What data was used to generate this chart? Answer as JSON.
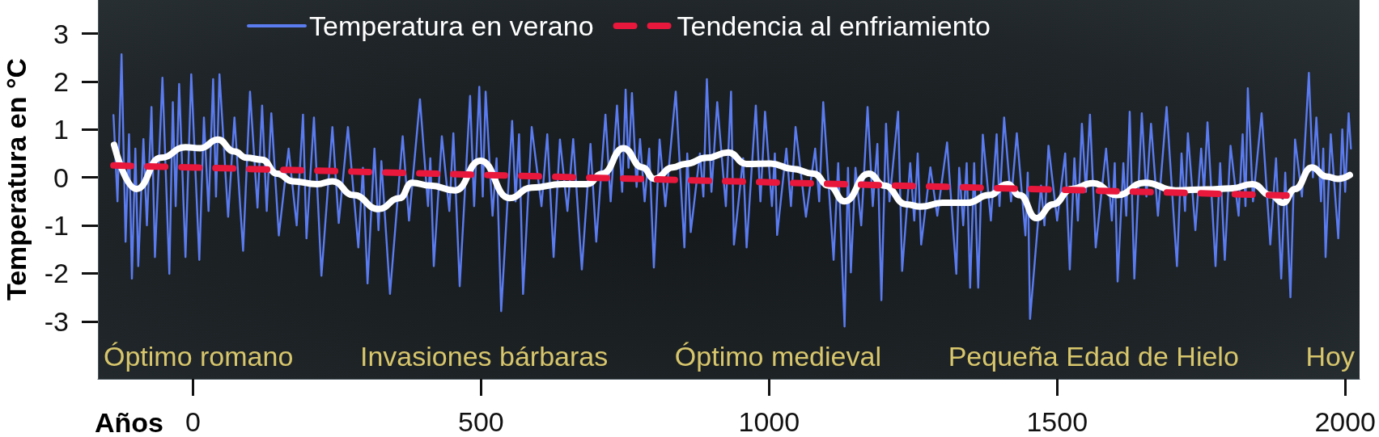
{
  "chart_data": {
    "type": "line",
    "xlabel": "Años",
    "ylabel": "Temperatura en °C",
    "annotations": [
      "Óptimo romano",
      "Invasiones bárbaras",
      "Óptimo medieval",
      "Pequeña Edad de Hielo",
      "Hoy"
    ],
    "series": [
      {
        "name": "Temperatura en verano",
        "color": "#5b7cf0",
        "x": [
          -138,
          -131,
          -124,
          -117,
          -111,
          -106,
          -100,
          -95,
          -86,
          -80,
          -72,
          -66,
          -53,
          -41,
          -35,
          -30,
          -24,
          -13,
          -3,
          11,
          19,
          27,
          35,
          40,
          46,
          61,
          72,
          87,
          99,
          112,
          120,
          128,
          136,
          149,
          166,
          180,
          191,
          197,
          210,
          223,
          242,
          253,
          269,
          287,
          295,
          303,
          315,
          322,
          327,
          342,
          364,
          375,
          394,
          408,
          412,
          418,
          432,
          445,
          452,
          463,
          481,
          488,
          497,
          503,
          508,
          520,
          527,
          535,
          554,
          560,
          566,
          573,
          588,
          605,
          615,
          626,
          637,
          650,
          660,
          675,
          690,
          700,
          716,
          725,
          736,
          745,
          751,
          756,
          762,
          770,
          776,
          784,
          792,
          800,
          810,
          820,
          838,
          853,
          858,
          864,
          880,
          886,
          892,
          900,
          910,
          925,
          934,
          939,
          955,
          961,
          977,
          985,
          993,
          1005,
          1010,
          1014,
          1030,
          1038,
          1046,
          1064,
          1080,
          1087,
          1094,
          1112,
          1120,
          1131,
          1137,
          1142,
          1150,
          1160,
          1171,
          1180,
          1188,
          1195,
          1203,
          1209,
          1224,
          1231,
          1245,
          1252,
          1258,
          1264,
          1280,
          1292,
          1309,
          1325,
          1330,
          1337,
          1343,
          1349,
          1356,
          1363,
          1371,
          1385,
          1395,
          1400,
          1408,
          1420,
          1430,
          1445,
          1449,
          1453,
          1472,
          1478,
          1485,
          1500,
          1514,
          1522,
          1530,
          1536,
          1543,
          1550,
          1557,
          1567,
          1585,
          1595,
          1600,
          1605,
          1615,
          1620,
          1626,
          1634,
          1647,
          1655,
          1663,
          1675,
          1690,
          1708,
          1716,
          1722,
          1727,
          1740,
          1750,
          1755,
          1761,
          1775,
          1783,
          1791,
          1801,
          1815,
          1822,
          1827,
          1831,
          1840,
          1855,
          1870,
          1880,
          1889,
          1896,
          1905,
          1913,
          1925,
          1937,
          1944,
          1950,
          1958,
          1962,
          1966,
          1975,
          1988,
          1995,
          2000,
          2006,
          2010
        ],
        "values": [
          1.3,
          -0.5,
          2.57,
          -1.34,
          0.9,
          -2.11,
          0.6,
          -1.85,
          0.8,
          -1.0,
          1.47,
          -1.66,
          2.08,
          -2.01,
          1.57,
          -0.6,
          1.95,
          -1.66,
          2.15,
          -1.72,
          1.25,
          -0.7,
          2.05,
          -0.4,
          2.15,
          -0.82,
          1.25,
          -1.53,
          1.79,
          -0.63,
          1.5,
          -0.7,
          1.34,
          -1.21,
          0.6,
          -1.0,
          1.31,
          -1.27,
          1.25,
          -2.05,
          1.05,
          -0.95,
          1.05,
          -1.46,
          0.2,
          -2.21,
          0.6,
          -1.1,
          0.34,
          -2.43,
          0.86,
          -0.9,
          1.63,
          -0.6,
          0.4,
          -1.85,
          0.86,
          -0.7,
          0.92,
          -2.27,
          1.7,
          -0.6,
          1.89,
          -0.4,
          1.79,
          -0.8,
          0.4,
          -2.79,
          1.18,
          -0.5,
          0.9,
          -2.43,
          1.05,
          -0.6,
          0.9,
          -1.66,
          0.79,
          -0.7,
          0.8,
          -1.92,
          0.7,
          -1.34,
          1.31,
          -0.5,
          1.5,
          -0.3,
          1.83,
          0.2,
          1.76,
          -0.2,
          0.8,
          -0.5,
          0.6,
          -1.88,
          0.79,
          -0.6,
          1.79,
          -1.46,
          0.5,
          -1.14,
          0.5,
          -0.4,
          2.05,
          -0.3,
          1.57,
          -0.6,
          1.79,
          -1.4,
          0.4,
          -1.46,
          1.5,
          -0.5,
          1.37,
          -0.6,
          0.5,
          -1.2,
          0.6,
          -0.6,
          1.05,
          -0.82,
          0.6,
          -0.5,
          1.57,
          -1.72,
          0.3,
          -3.11,
          0.2,
          -1.98,
          0.2,
          -1.0,
          1.47,
          -0.6,
          0.7,
          -2.56,
          1.12,
          -0.5,
          1.37,
          -1.95,
          0.3,
          -0.9,
          0.5,
          -1.4,
          0.21,
          -0.8,
          0.73,
          -2.01,
          0.2,
          -1.0,
          0.3,
          -2.3,
          0.3,
          -2.3,
          0.89,
          -0.9,
          0.9,
          -0.6,
          1.25,
          -0.5,
          0.92,
          -1.21,
          0.1,
          -2.95,
          -0.17,
          -1.0,
          0.66,
          -0.9,
          0.5,
          -1.92,
          0.4,
          -0.9,
          1.12,
          -0.3,
          1.31,
          -1.46,
          0.6,
          -0.9,
          0.3,
          -2.17,
          0.3,
          -0.8,
          1.37,
          -2.11,
          1.34,
          -0.4,
          1.12,
          -0.8,
          1.47,
          -1.85,
          0.5,
          -0.7,
          0.92,
          -1.1,
          0.6,
          -0.3,
          1.15,
          -1.85,
          0.3,
          -1.72,
          0.66,
          -0.8,
          0.9,
          -0.6,
          1.86,
          -0.5,
          1.34,
          -1.4,
          0.4,
          -2.11,
          0.1,
          -2.5,
          0.79,
          -0.4,
          2.18,
          0.0,
          1.25,
          -0.5,
          0.6,
          -1.66,
          0.9,
          -1.27,
          1.0,
          -0.3,
          1.34,
          0.6
        ]
      },
      {
        "color": "#ffffff",
        "x": [
          -137,
          -98,
          -56,
          -13,
          13,
          43,
          72,
          93,
          120,
          146,
          173,
          215,
          242,
          279,
          322,
          359,
          380,
          412,
          455,
          499,
          549,
          588,
          641,
          684,
          711,
          747,
          780,
          801,
          833,
          854,
          892,
          929,
          961,
          1003,
          1040,
          1077,
          1104,
          1131,
          1173,
          1200,
          1238,
          1263,
          1301,
          1344,
          1382,
          1414,
          1435,
          1464,
          1493,
          1525,
          1562,
          1604,
          1652,
          1706,
          1759,
          1801,
          1839,
          1871,
          1892,
          1913,
          1942,
          1967,
          1988,
          2008
        ],
        "values": [
          0.68,
          -0.24,
          0.41,
          0.63,
          0.61,
          0.79,
          0.54,
          0.41,
          0.37,
          0.08,
          -0.08,
          -0.14,
          -0.08,
          -0.37,
          -0.66,
          -0.43,
          -0.11,
          -0.17,
          -0.27,
          0.35,
          -0.43,
          -0.21,
          -0.14,
          -0.14,
          0.08,
          0.61,
          0.21,
          -0.03,
          0.21,
          0.28,
          0.41,
          0.52,
          0.28,
          0.29,
          0.18,
          0.08,
          -0.17,
          -0.5,
          0.08,
          -0.17,
          -0.56,
          -0.61,
          -0.53,
          -0.53,
          -0.37,
          -0.14,
          -0.37,
          -0.85,
          -0.56,
          -0.24,
          -0.12,
          -0.37,
          -0.11,
          -0.27,
          -0.25,
          -0.23,
          -0.14,
          -0.37,
          -0.53,
          -0.24,
          0.21,
          0.02,
          -0.03,
          0.05
        ]
      },
      {
        "name": "Tendencia al enfriamiento",
        "color": "#e8173c",
        "line_style": "dashed",
        "x": [
          -138,
          1905
        ],
        "values": [
          0.25,
          -0.38
        ]
      }
    ],
    "xlim": [
      -165,
      2025
    ],
    "ylim": [
      -4.2,
      3.7
    ],
    "xticks": [
      0,
      500,
      1000,
      1500,
      2000
    ],
    "yticks": [
      -3,
      -2,
      -1,
      0,
      1,
      2,
      3
    ],
    "grid": false,
    "legend": "top",
    "marker": "none",
    "line_style": "solid"
  }
}
